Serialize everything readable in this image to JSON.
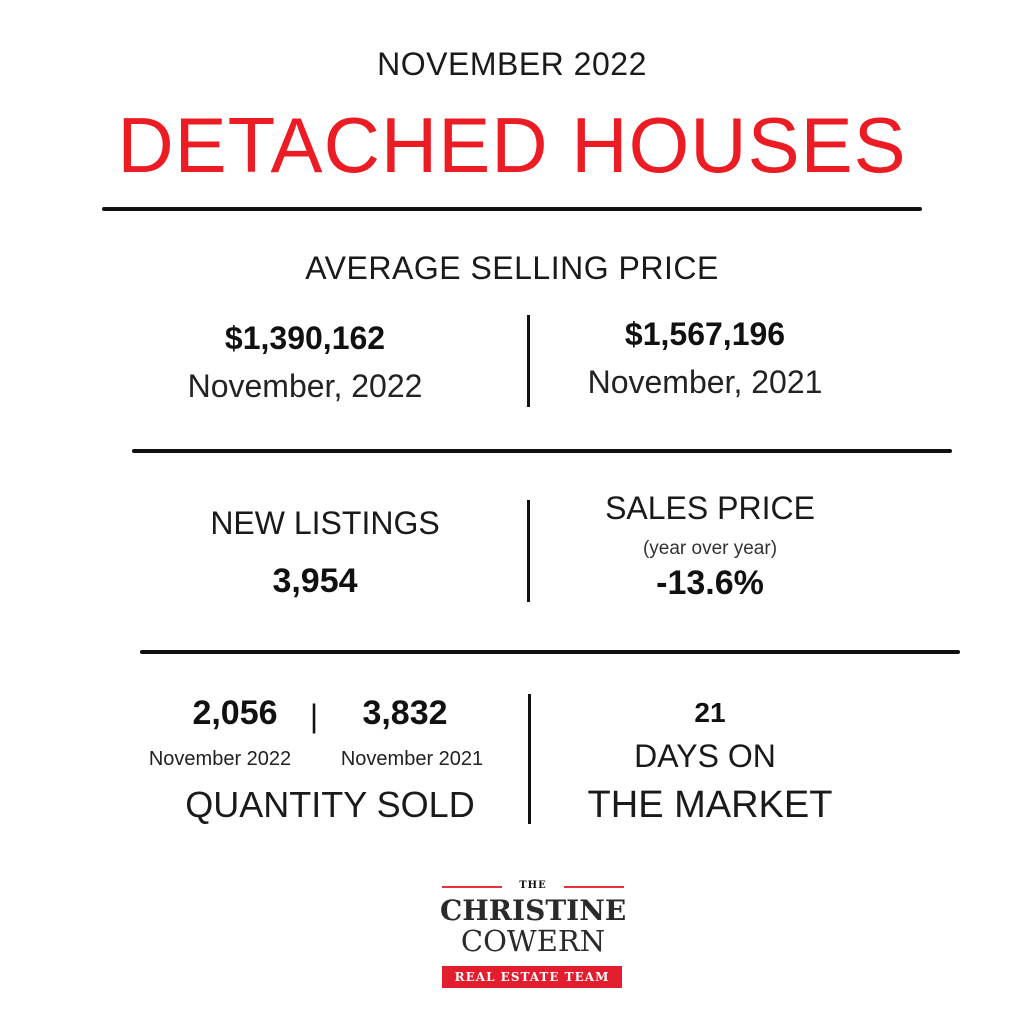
{
  "header": {
    "month": "NOVEMBER 2022",
    "title": "DETACHED HOUSES"
  },
  "avg_selling_price": {
    "title": "AVERAGE SELLING PRICE",
    "current": {
      "value": "$1,390,162",
      "label": "November, 2022"
    },
    "previous": {
      "value": "$1,567,196",
      "label": "November, 2021"
    }
  },
  "new_listings": {
    "title": "NEW LISTINGS",
    "value": "3,954"
  },
  "sales_price": {
    "title": "SALES PRICE",
    "subtitle": "(year over year)",
    "value": "-13.6%"
  },
  "quantity_sold": {
    "current_value": "2,056",
    "separator": "|",
    "previous_value": "3,832",
    "current_label": "November 2022",
    "previous_label": "November 2021",
    "title": "QUANTITY SOLD"
  },
  "days_on_market": {
    "value": "21",
    "line1": "DAYS ON",
    "line2": "THE MARKET"
  },
  "logo": {
    "the": "THE",
    "line1": "CHRISTINE",
    "line2": "COWERN",
    "band": "REAL ESTATE TEAM",
    "accent_color": "#e11d2e"
  },
  "colors": {
    "title_red": "#ec1c24",
    "rule": "#111111"
  }
}
